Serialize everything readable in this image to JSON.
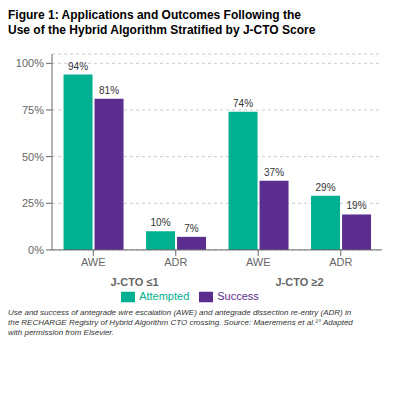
{
  "chart_data": {
    "type": "bar",
    "title": "Figure 1: Applications and Outcomes Following the\nUse of the Hybrid Algorithm Stratified by J-CTO Score",
    "categories": [
      "AWE",
      "ADR",
      "AWE",
      "ADR"
    ],
    "category_groups": [
      "J-CTO ≤1",
      "J-CTO ≤1",
      "J-CTO ≥2",
      "J-CTO ≥2"
    ],
    "series": [
      {
        "name": "Attempted",
        "color": "#00B090",
        "values": [
          94,
          10,
          74,
          29
        ],
        "value_labels": [
          "94%",
          "10%",
          "74%",
          "29%"
        ]
      },
      {
        "name": "Success",
        "color": "#5B2D8E",
        "values": [
          81,
          7,
          37,
          19
        ],
        "value_labels": [
          "81%",
          "7%",
          "37%",
          "19%"
        ]
      }
    ],
    "ylim": [
      0,
      105
    ],
    "yticks": [
      {
        "value": 0,
        "label": "0%"
      },
      {
        "value": 25,
        "label": "25%"
      },
      {
        "value": 50,
        "label": "50%"
      },
      {
        "value": 75,
        "label": "75%"
      },
      {
        "value": 100,
        "label": "100%"
      }
    ],
    "grid": true,
    "legend": "bottom",
    "data_labels": true,
    "caption": "Use and success of antegrade wire escalation (AWE) and antegrade dissection re-entry (ADR) in\nthe RECHARGE Registry of Hybrid Algorithm CTO crossing. Source: Maeremens et al.¹° Adapted\nwith permission from Elsevier."
  }
}
